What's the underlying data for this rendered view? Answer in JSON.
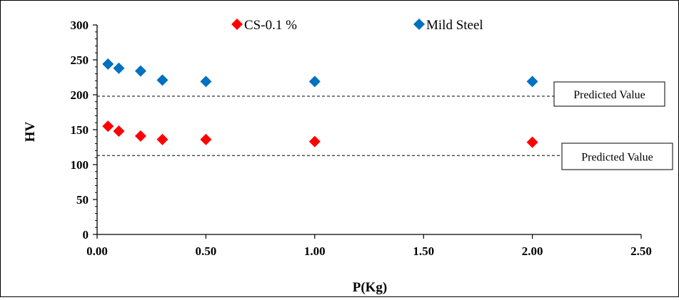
{
  "chart_data": {
    "type": "scatter",
    "xlabel": "P(Kg)",
    "ylabel": "HV",
    "xlim": [
      0,
      2.5
    ],
    "ylim": [
      0,
      300
    ],
    "xticks": [
      "0.00",
      "0.50",
      "1.00",
      "1.50",
      "2.00",
      "2.50"
    ],
    "xtick_values": [
      0,
      0.5,
      1.0,
      1.5,
      2.0,
      2.5
    ],
    "yticks": [
      "0",
      "50",
      "100",
      "150",
      "200",
      "250",
      "300"
    ],
    "ytick_values": [
      0,
      50,
      100,
      150,
      200,
      250,
      300
    ],
    "grid": false,
    "legend_position": "top",
    "series": [
      {
        "name": "CS-0.1 %",
        "color": "#ff0000",
        "marker": "diamond",
        "x": [
          0.05,
          0.1,
          0.2,
          0.3,
          0.5,
          1.0,
          2.0
        ],
        "y": [
          155,
          148,
          141,
          136,
          136,
          133,
          132
        ]
      },
      {
        "name": "Mild Steel",
        "color": "#0070c0",
        "marker": "diamond",
        "x": [
          0.05,
          0.1,
          0.2,
          0.3,
          0.5,
          1.0,
          2.0
        ],
        "y": [
          244,
          238,
          234,
          221,
          219,
          219,
          219
        ]
      }
    ],
    "reference_lines": [
      {
        "y": 198,
        "style": "dashed",
        "label": "Predicted Value"
      },
      {
        "y": 113,
        "style": "dashed",
        "label": "Predicted Value"
      }
    ]
  }
}
